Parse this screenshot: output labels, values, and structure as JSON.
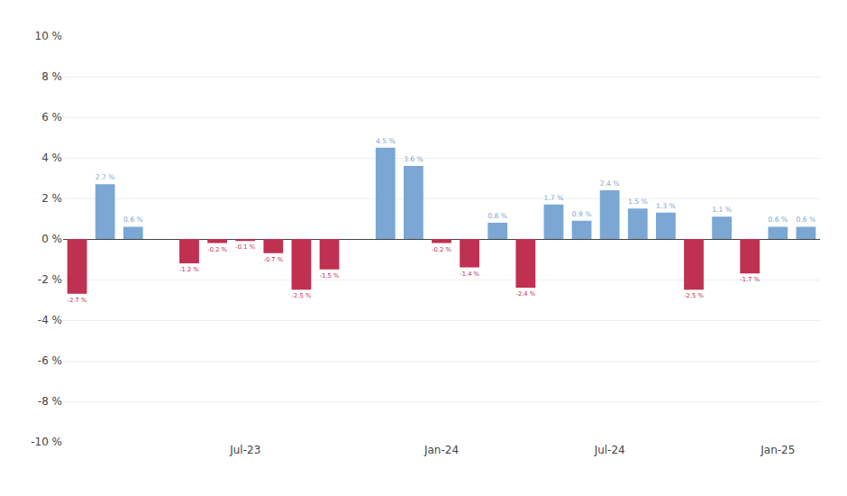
{
  "chart_data": {
    "type": "bar",
    "categories": [
      null,
      null,
      null,
      null,
      null,
      null,
      "Jul-23",
      null,
      null,
      null,
      null,
      null,
      null,
      "Jan-24",
      null,
      null,
      null,
      null,
      null,
      "Jul-24",
      null,
      null,
      null,
      null,
      null,
      "Jan-25",
      null
    ],
    "values": [
      -2.7,
      2.7,
      0.6,
      null,
      -1.2,
      -0.2,
      -0.1,
      -0.7,
      -2.5,
      -1.5,
      null,
      4.5,
      3.6,
      -0.2,
      -1.4,
      0.8,
      -2.4,
      1.7,
      0.9,
      2.4,
      1.5,
      1.3,
      -2.5,
      1.1,
      -1.7,
      0.6,
      0.6
    ],
    "value_labels": [
      "-2.7 %",
      "2.7 %",
      "0.6 %",
      null,
      "-1.2 %",
      "-0.2 %",
      "-0.1 %",
      "-0.7 %",
      "-2.5 %",
      "-1.5 %",
      null,
      "4.5 %",
      "3.6 %",
      "-0.2 %",
      "-1.4 %",
      "0.8 %",
      "-2.4 %",
      "1.7 %",
      "0.9 %",
      "2.4 %",
      "1.5 %",
      "1.3 %",
      "-2.5 %",
      "1.1 %",
      "-1.7 %",
      "0.6 %",
      "0.6 %"
    ],
    "colors": [
      "#c03050",
      "#7ba7d4",
      "#7ba7d4",
      null,
      "#c03050",
      "#c03050",
      "#c03050",
      "#c03050",
      "#c03050",
      "#c03050",
      null,
      "#7ba7d4",
      "#7ba7d4",
      "#c03050",
      "#c03050",
      "#7ba7d4",
      "#c03050",
      "#7ba7d4",
      "#7ba7d4",
      "#7ba7d4",
      "#7ba7d4",
      "#7ba7d4",
      "#c03050",
      "#7ba7d4",
      "#c03050",
      "#7ba7d4",
      "#7ba7d4"
    ],
    "data_labels": true,
    "ylim": [
      -10,
      10
    ],
    "yticks": [
      {
        "value": -10,
        "label": "-10 %"
      },
      {
        "value": -8,
        "label": "-8 %"
      },
      {
        "value": -6,
        "label": "-6 %"
      },
      {
        "value": -4,
        "label": "-4 %"
      },
      {
        "value": -2,
        "label": "-2 %"
      },
      {
        "value": 0,
        "label": "0 %"
      },
      {
        "value": 2,
        "label": "2 %"
      },
      {
        "value": 4,
        "label": "4 %"
      },
      {
        "value": 6,
        "label": "6 %"
      },
      {
        "value": 8,
        "label": "8 %"
      },
      {
        "value": 10,
        "label": "10 %"
      }
    ],
    "grid": true
  }
}
